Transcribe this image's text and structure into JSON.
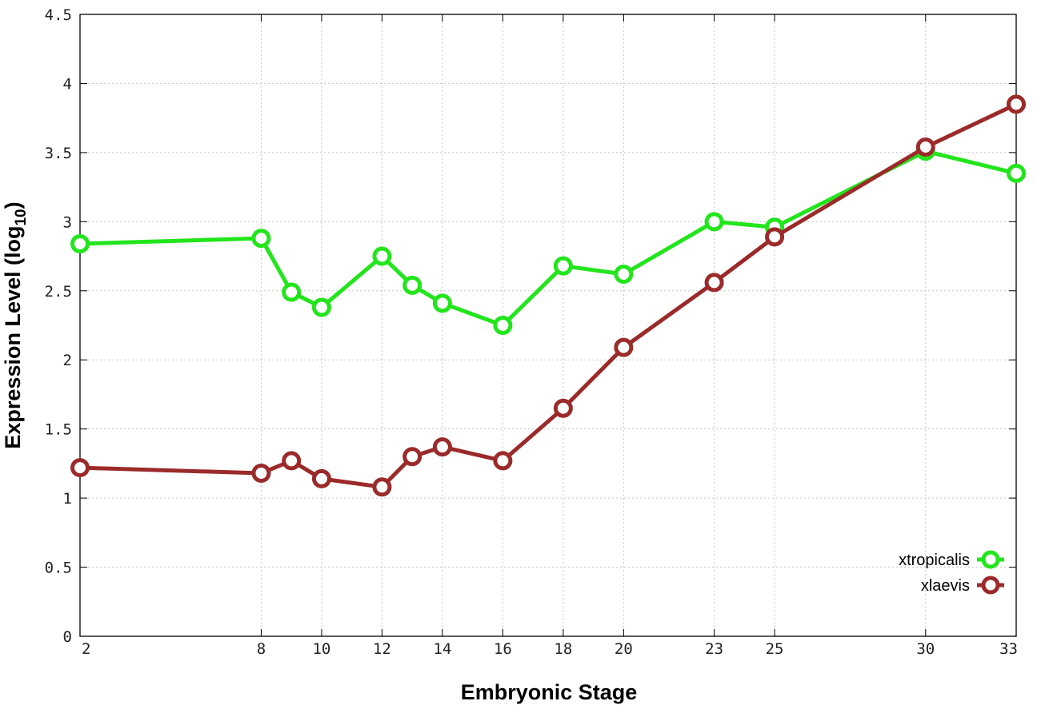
{
  "chart_data": {
    "type": "line",
    "xlabel": "Embryonic Stage",
    "ylabel": "Expression Level (log",
    "ylabel_subscript": "10",
    "ylabel_close": ")",
    "x": [
      2,
      8,
      9,
      10,
      12,
      13,
      14,
      16,
      18,
      20,
      23,
      25,
      30,
      33
    ],
    "x_ticks": [
      2,
      8,
      10,
      12,
      14,
      16,
      18,
      20,
      23,
      25,
      30,
      33
    ],
    "y_ticks": [
      0,
      0.5,
      1,
      1.5,
      2,
      2.5,
      3,
      3.5,
      4,
      4.5
    ],
    "y_tick_labels": [
      "0",
      "0.5",
      "1",
      "1.5",
      "2",
      "2.5",
      "3",
      "3.5",
      "4",
      "4.5"
    ],
    "xlim": [
      2,
      33
    ],
    "ylim": [
      0,
      4.5
    ],
    "grid": true,
    "legend_position": "bottom-right",
    "series": [
      {
        "name": "xtropicalis",
        "color": "#22e51c",
        "values": [
          2.84,
          2.88,
          2.49,
          2.38,
          2.75,
          2.54,
          2.41,
          2.25,
          2.68,
          2.62,
          3.0,
          2.96,
          3.51,
          3.35
        ]
      },
      {
        "name": "xlaevis",
        "color": "#9b2a2a",
        "values": [
          1.22,
          1.18,
          1.27,
          1.14,
          1.08,
          1.3,
          1.37,
          1.27,
          1.65,
          2.09,
          2.56,
          2.89,
          3.54,
          3.85
        ]
      }
    ]
  }
}
